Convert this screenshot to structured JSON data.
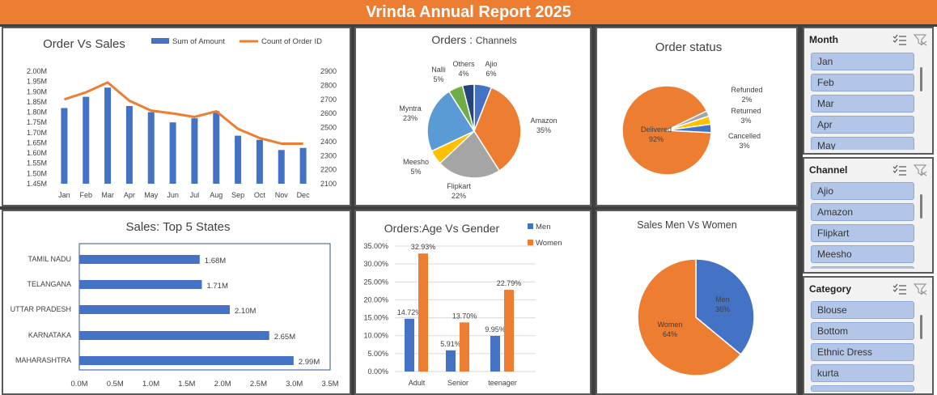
{
  "page": {
    "title": "Vrinda Annual Report 2025"
  },
  "colors": {
    "blue": "#4472c4",
    "orange": "#ed7d31",
    "gray": "#a5a5a5",
    "yellow": "#ffc000",
    "lightblue": "#5b9bd5",
    "green": "#70ad47",
    "navy": "#264478"
  },
  "chart_data": [
    {
      "id": "order_vs_sales",
      "type": "bar",
      "title": "Order Vs Sales",
      "categories": [
        "Jan",
        "Feb",
        "Mar",
        "Apr",
        "May",
        "Jun",
        "Jul",
        "Aug",
        "Sep",
        "Oct",
        "Nov",
        "Dec"
      ],
      "series": [
        {
          "name": "Sum of Amount",
          "type": "bar",
          "axis": "left",
          "values": [
            1.82,
            1.875,
            1.92,
            1.83,
            1.8,
            1.75,
            1.77,
            1.805,
            1.685,
            1.665,
            1.615,
            1.625
          ]
        },
        {
          "name": "Count of Order ID",
          "type": "line",
          "axis": "right",
          "values": [
            2700,
            2750,
            2820,
            2690,
            2620,
            2600,
            2575,
            2615,
            2490,
            2425,
            2385,
            2385
          ]
        }
      ],
      "y_left": {
        "min": 1.45,
        "max": 2.0,
        "ticks": [
          "1.45M",
          "1.50M",
          "1.55M",
          "1.60M",
          "1.65M",
          "1.70M",
          "1.75M",
          "1.80M",
          "1.85M",
          "1.90M",
          "1.95M",
          "2.00M"
        ]
      },
      "y_right": {
        "min": 2100,
        "max": 2900,
        "ticks": [
          "2100",
          "2200",
          "2300",
          "2400",
          "2500",
          "2600",
          "2700",
          "2800",
          "2900"
        ]
      },
      "legend": "top-right"
    },
    {
      "id": "orders_channels",
      "type": "pie",
      "title_main": "Orders : ",
      "title_sub": "Channels",
      "slices": [
        {
          "name": "Ajio",
          "pct": "6%",
          "value": 6,
          "color": "#4472c4"
        },
        {
          "name": "Amazon",
          "pct": "35%",
          "value": 35,
          "color": "#ed7d31"
        },
        {
          "name": "Flipkart",
          "pct": "22%",
          "value": 22,
          "color": "#a5a5a5"
        },
        {
          "name": "Meesho",
          "pct": "5%",
          "value": 5,
          "color": "#ffc000"
        },
        {
          "name": "Myntra",
          "pct": "23%",
          "value": 23,
          "color": "#5b9bd5"
        },
        {
          "name": "Nalli",
          "pct": "5%",
          "value": 5,
          "color": "#70ad47"
        },
        {
          "name": "Others",
          "pct": "4%",
          "value": 4,
          "color": "#264478"
        }
      ]
    },
    {
      "id": "order_status",
      "type": "pie",
      "title": "Order status",
      "slices": [
        {
          "name": "Delivered",
          "pct": "92%",
          "value": 92,
          "color": "#ed7d31"
        },
        {
          "name": "Refunded",
          "pct": "2%",
          "value": 2,
          "color": "#a5a5a5"
        },
        {
          "name": "Returned",
          "pct": "3%",
          "value": 3,
          "color": "#ffc000"
        },
        {
          "name": "Cancelled",
          "pct": "3%",
          "value": 3,
          "color": "#4472c4"
        }
      ]
    },
    {
      "id": "top5_states",
      "type": "bar",
      "orientation": "horizontal",
      "title": "Sales: Top 5 States",
      "categories": [
        "TAMIL NADU",
        "TELANGANA",
        "UTTAR PRADESH",
        "KARNATAKA",
        "MAHARASHTRA"
      ],
      "values": [
        1.68,
        1.71,
        2.1,
        2.65,
        2.99
      ],
      "labels": [
        "1.68M",
        "1.71M",
        "2.10M",
        "2.65M",
        "2.99M"
      ],
      "xlim": [
        0,
        3.5
      ],
      "xticks": [
        "0.0M",
        "0.5M",
        "1.0M",
        "1.5M",
        "2.0M",
        "2.5M",
        "3.0M",
        "3.5M"
      ]
    },
    {
      "id": "age_vs_gender",
      "type": "bar",
      "title": "Orders:Age Vs Gender",
      "categories": [
        "Adult",
        "Senior",
        "teenager"
      ],
      "series": [
        {
          "name": "Men",
          "values": [
            14.72,
            5.91,
            9.95
          ],
          "labels": [
            "14.72%",
            "5.91%",
            "9.95%"
          ],
          "color": "#4472c4"
        },
        {
          "name": "Women",
          "values": [
            32.93,
            13.7,
            22.79
          ],
          "labels": [
            "32.93%",
            "13.70%",
            "22.79%"
          ],
          "color": "#ed7d31"
        }
      ],
      "ylim": [
        0,
        35
      ],
      "yticks": [
        "0.00%",
        "5.00%",
        "10.00%",
        "15.00%",
        "20.00%",
        "25.00%",
        "30.00%",
        "35.00%"
      ],
      "legend": "top-right"
    },
    {
      "id": "sales_men_women",
      "type": "pie",
      "title": "Sales Men Vs Women",
      "slices": [
        {
          "name": "Men",
          "pct": "36%",
          "value": 36,
          "color": "#4472c4"
        },
        {
          "name": "Women",
          "pct": "64%",
          "value": 64,
          "color": "#ed7d31"
        }
      ]
    }
  ],
  "slicers": {
    "month": {
      "title": "Month",
      "items": [
        "Jan",
        "Feb",
        "Mar",
        "Apr",
        "May"
      ]
    },
    "channel": {
      "title": "Channel",
      "items": [
        "Ajio",
        "Amazon",
        "Flipkart",
        "Meesho"
      ]
    },
    "category": {
      "title": "Category",
      "items": [
        "Blouse",
        "Bottom",
        "Ethnic Dress",
        "kurta"
      ]
    }
  }
}
